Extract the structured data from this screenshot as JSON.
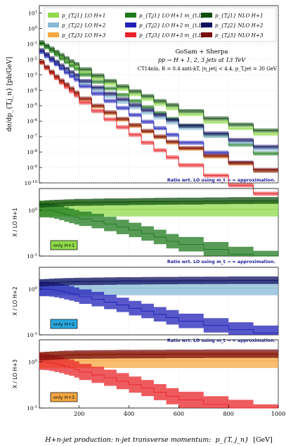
{
  "chart_data": {
    "type": "line",
    "x_unit_label": "H+n-jet production: n-jet transverse momentum:",
    "x_unit_symbol": "p_{T, j_n}",
    "x_unit_gev": "[GeV]",
    "x_ticks": [
      "200",
      "400",
      "600",
      "800",
      "1000"
    ],
    "xlim": [
      40,
      1000
    ],
    "bins": [
      40,
      60,
      80,
      100,
      120,
      140,
      160,
      180,
      200,
      250,
      300,
      350,
      400,
      450,
      500,
      550,
      600,
      700,
      800,
      900,
      1000
    ],
    "main": {
      "ylabel": "dσ/dp_{T,j_n} [pb/GeV]",
      "yscale": "log",
      "ylim": [
        1e-10,
        30
      ],
      "y_ticks": [
        "10^1",
        "10^0",
        "10^-1",
        "10^-2",
        "10^-3",
        "10^-4",
        "10^-5",
        "10^-6",
        "10^-7",
        "10^-8",
        "10^-9",
        "10^-10"
      ],
      "annotation": {
        "line1": "GoSam + Sherpa",
        "line2": "pp → H + 1, 2, 3 jets at 13 TeV",
        "line3": "CT14nlo, R = 0.4 anti-kT, |η_jet| < 4.4, p_T,jet = 30 GeV"
      },
      "ratio_note": "Ratio wrt. LO using m_t → ∞ approximation.",
      "legend": [
        {
          "label": "p_{T,j1} LO H+1",
          "color": "#8fd94a"
        },
        {
          "label": "p_{T,j1} LO H+1 m_{t,b}",
          "color": "#1f7a1f"
        },
        {
          "label": "p_{T,j1} NLO H+1",
          "color": "#0f4d0f"
        },
        {
          "label": "p_{T,j2} LO H+2",
          "color": "#88b9d6"
        },
        {
          "label": "p_{T,j2} LO H+2 m_{t,b}",
          "color": "#2020b8"
        },
        {
          "label": "p_{T,j2} NLO H+2",
          "color": "#101060"
        },
        {
          "label": "p_{T,j3} LO H+3",
          "color": "#f5a742"
        },
        {
          "label": "p_{T,j3} LO H+3 m_{t,b}",
          "color": "#e8242a"
        },
        {
          "label": "p_{T,j3} NLO H+3",
          "color": "#7a0c0c"
        }
      ],
      "series": [
        {
          "name": "p_{T,j1} LO H+1",
          "color": "#8fd94a",
          "values": [
            0.1,
            0.06,
            0.035,
            0.022,
            0.013,
            0.008,
            0.005,
            0.0033,
            0.0015,
            0.0006,
            0.00026,
            0.00012,
            5.5e-05,
            2.7e-05,
            1.3e-05,
            6.7e-06,
            2.8e-06,
            9e-07,
            3.5e-07,
            1.5e-07
          ]
        },
        {
          "name": "p_{T,j1} LO H+1 m_{t,b}",
          "color": "#1f7a1f",
          "values": [
            0.1,
            0.06,
            0.035,
            0.02,
            0.011,
            0.0065,
            0.0038,
            0.0024,
            0.001,
            0.00035,
            0.00013,
            5e-05,
            2e-05,
            8e-06,
            3.3e-06,
            1.4e-06,
            5e-07,
            1.2e-07,
            3e-08,
            8e-09
          ]
        },
        {
          "name": "p_{T,j1} NLO H+1",
          "color": "#0f4d0f",
          "values": [
            0.13,
            0.08,
            0.05,
            0.031,
            0.019,
            0.012,
            0.0075,
            0.005,
            0.0023,
            0.0009,
            0.0004,
            0.00018,
            8.5e-05,
            4.2e-05,
            2e-05,
            1.1e-05,
            4.5e-06,
            1.5e-06,
            6e-07,
            2.5e-07
          ]
        },
        {
          "name": "p_{T,j2} LO H+2",
          "color": "#88b9d6",
          "values": [
            0.03,
            0.016,
            0.0085,
            0.005,
            0.0028,
            0.0017,
            0.001,
            0.00065,
            0.00028,
            0.0001,
            4e-05,
            1.7e-05,
            7.5e-06,
            3.5e-06,
            1.7e-06,
            8e-07,
            3.5e-07,
            1.1e-07,
            4e-08,
            1.5e-08
          ]
        },
        {
          "name": "p_{T,j2} LO H+2 m_{t,b}",
          "color": "#2020b8",
          "values": [
            0.03,
            0.016,
            0.0085,
            0.0047,
            0.0025,
            0.0014,
            0.0008,
            0.00048,
            0.00018,
            6e-05,
            2e-05,
            7e-06,
            2.5e-06,
            9e-07,
            3.5e-07,
            1.3e-07,
            4e-08,
            9e-09,
            2e-09,
            6e-10
          ]
        },
        {
          "name": "p_{T,j2} NLO H+2",
          "color": "#101060",
          "values": [
            0.04,
            0.022,
            0.012,
            0.007,
            0.004,
            0.0025,
            0.0015,
            0.00095,
            0.0004,
            0.00015,
            6e-05,
            2.6e-05,
            1.1e-05,
            5.2e-06,
            2.5e-06,
            1.2e-06,
            5e-07,
            1.6e-07,
            6e-08,
            2.2e-08
          ]
        },
        {
          "name": "p_{T,j3} LO H+3",
          "color": "#f5a742",
          "values": [
            0.006,
            0.0027,
            0.0013,
            0.00065,
            0.00035,
            0.0002,
            0.00011,
            6e-05,
            2.5e-05,
            8.5e-06,
            3.1e-06,
            1.2e-06,
            4.8e-07,
            2e-07,
            9e-08,
            4e-08,
            1.6e-08,
            5e-09,
            1.7e-09,
            6e-10
          ]
        },
        {
          "name": "p_{T,j3} LO H+3 m_{t,b}",
          "color": "#e8242a",
          "values": [
            0.006,
            0.0027,
            0.0013,
            0.0006,
            0.0003,
            0.00016,
            8.5e-05,
            4.5e-05,
            1.6e-05,
            4.5e-06,
            1.3e-06,
            4e-07,
            1.3e-07,
            4e-08,
            1.3e-08,
            4.5e-09,
            1.4e-09,
            3e-10,
            7e-11,
            2e-11
          ]
        },
        {
          "name": "p_{T,j3} NLO H+3",
          "color": "#7a0c0c",
          "values": [
            0.007,
            0.0033,
            0.0016,
            0.0008,
            0.00043,
            0.00024,
            0.00013,
            7e-05,
            2.9e-05,
            1e-05,
            3.7e-06,
            1.4e-06,
            5.6e-07,
            2.3e-07,
            1e-07,
            4.6e-08,
            1.8e-08,
            5.8e-09,
            2e-09,
            7e-10
          ]
        }
      ]
    },
    "ratios": [
      {
        "ylabel": "X / LO H+1",
        "tag": "only H+1",
        "tag_color": "#8fd94a",
        "ylim": [
          0.1,
          3
        ],
        "y_ticks": [
          "10^0",
          "10^-1"
        ],
        "note": "Ratio wrt. LO using m_t → ∞ approximation.",
        "series": [
          {
            "name": "LO H+1 band",
            "color": "#8fd94a",
            "values": [
              1.05,
              1.05,
              1.05,
              1.05,
              1.05,
              1.05,
              1.05,
              1.05,
              1.05,
              1.05,
              1.05,
              1.05,
              1.05,
              1.05,
              1.05,
              1.05,
              1.05,
              1.05,
              1.05,
              1.05
            ],
            "up": 1.55,
            "down": 0.7
          },
          {
            "name": "LO H+1 m_tb",
            "color": "#1f7a1f",
            "values": [
              1.0,
              1.0,
              0.98,
              0.93,
              0.87,
              0.8,
              0.75,
              0.7,
              0.65,
              0.58,
              0.5,
              0.43,
              0.37,
              0.31,
              0.26,
              0.21,
              0.18,
              0.14,
              0.11,
              0.09
            ],
            "up": 1.45,
            "down": 0.7
          },
          {
            "name": "NLO H+1",
            "color": "#0f4d0f",
            "values": [
              1.35,
              1.38,
              1.4,
              1.42,
              1.43,
              1.45,
              1.46,
              1.48,
              1.48,
              1.5,
              1.52,
              1.52,
              1.54,
              1.55,
              1.56,
              1.57,
              1.58,
              1.6,
              1.62,
              1.63
            ],
            "up": 1.2,
            "down": 0.85
          }
        ]
      },
      {
        "ylabel": "X / LO H+2",
        "tag": "only H+2",
        "tag_color": "#29a8e0",
        "ylim": [
          0.1,
          3
        ],
        "y_ticks": [
          "10^0",
          "10^-1"
        ],
        "note": "Ratio wrt. LO using m_t → ∞ approximation.",
        "series": [
          {
            "name": "LO H+2 band",
            "color": "#88b9d6",
            "values": [
              1.05,
              1.05,
              1.05,
              1.05,
              1.05,
              1.05,
              1.05,
              1.05,
              1.05,
              1.05,
              1.05,
              1.05,
              1.05,
              1.05,
              1.05,
              1.05,
              1.05,
              1.05,
              1.05,
              1.05
            ],
            "up": 1.55,
            "down": 0.7
          },
          {
            "name": "LO H+2 m_tb",
            "color": "#2020b8",
            "values": [
              1.0,
              1.0,
              0.98,
              0.94,
              0.9,
              0.85,
              0.8,
              0.75,
              0.68,
              0.6,
              0.52,
              0.45,
              0.38,
              0.33,
              0.28,
              0.24,
              0.2,
              0.16,
              0.13,
              0.11
            ],
            "up": 1.45,
            "down": 0.7
          },
          {
            "name": "NLO H+2",
            "color": "#101060",
            "values": [
              1.35,
              1.37,
              1.39,
              1.41,
              1.42,
              1.43,
              1.44,
              1.45,
              1.46,
              1.47,
              1.48,
              1.5,
              1.5,
              1.51,
              1.52,
              1.52,
              1.53,
              1.54,
              1.55,
              1.55
            ],
            "up": 1.22,
            "down": 0.84
          }
        ]
      },
      {
        "ylabel": "X / LO H+3",
        "tag": "only H+3",
        "tag_color": "#f5a742",
        "ylim": [
          0.1,
          3
        ],
        "y_ticks": [
          "10^0",
          "10^-1"
        ],
        "series": [
          {
            "name": "LO H+3 band",
            "color": "#f5a742",
            "values": [
              1.05,
              1.05,
              1.05,
              1.05,
              1.05,
              1.05,
              1.05,
              1.05,
              1.05,
              1.05,
              1.05,
              1.05,
              1.05,
              1.05,
              1.05,
              1.05,
              1.05,
              1.05,
              1.05,
              1.05
            ],
            "up": 1.55,
            "down": 0.7
          },
          {
            "name": "LO H+3 m_tb",
            "color": "#e8242a",
            "values": [
              1.0,
              0.98,
              0.95,
              0.9,
              0.85,
              0.79,
              0.74,
              0.68,
              0.6,
              0.52,
              0.45,
              0.38,
              0.32,
              0.27,
              0.22,
              0.18,
              0.15,
              0.12,
              0.1,
              0.08
            ],
            "up": 1.5,
            "down": 0.67
          },
          {
            "name": "NLO H+3",
            "color": "#7a0c0c",
            "values": [
              1.3,
              1.32,
              1.34,
              1.36,
              1.38,
              1.4,
              1.4,
              1.42,
              1.42,
              1.43,
              1.44,
              1.45,
              1.45,
              1.46,
              1.46,
              1.47,
              1.47,
              1.48,
              1.48,
              1.48
            ],
            "up": 1.25,
            "down": 0.82
          }
        ]
      }
    ]
  }
}
